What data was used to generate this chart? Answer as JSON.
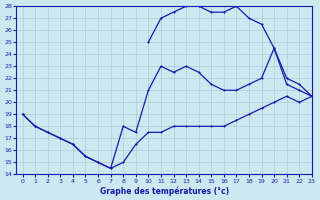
{
  "xlabel": "Graphe des températures (°c)",
  "bg_color": "#cce8f0",
  "line_color": "#1a1aaa",
  "grid_color": "#aaccd8",
  "ylim": [
    14,
    28
  ],
  "xlim": [
    -0.5,
    23
  ],
  "yticks": [
    14,
    15,
    16,
    17,
    18,
    19,
    20,
    21,
    22,
    23,
    24,
    25,
    26,
    27,
    28
  ],
  "xticks": [
    0,
    1,
    2,
    3,
    4,
    5,
    6,
    7,
    8,
    9,
    10,
    11,
    12,
    13,
    14,
    15,
    16,
    17,
    18,
    19,
    20,
    21,
    22,
    23
  ],
  "line_bottom_x": [
    0,
    1,
    2,
    3,
    4,
    5,
    6,
    7,
    8,
    9,
    10,
    11,
    12,
    13,
    14,
    15,
    16,
    17,
    18,
    19,
    20,
    21,
    22,
    23
  ],
  "line_bottom_y": [
    19,
    18,
    17.5,
    17,
    16.5,
    15.5,
    15,
    14.5,
    15,
    16.5,
    17.5,
    17.5,
    18,
    18,
    18,
    18,
    18,
    18.5,
    19,
    19.5,
    20,
    20.5,
    20,
    20.5
  ],
  "line_mid_x": [
    0,
    1,
    2,
    3,
    4,
    5,
    6,
    7,
    8,
    9,
    10,
    11,
    12,
    13,
    14,
    15,
    16,
    17,
    18,
    19,
    20,
    21,
    22,
    23
  ],
  "line_mid_y": [
    19,
    18,
    17.5,
    17,
    16.5,
    15.5,
    15,
    14.5,
    18,
    17.5,
    21,
    23,
    22.5,
    23,
    22.5,
    21.5,
    21,
    21,
    21.5,
    22,
    24.5,
    22,
    21.5,
    20.5
  ],
  "line_top_x": [
    10,
    11,
    12,
    13,
    14,
    15,
    16,
    17,
    18,
    19,
    20,
    21,
    22,
    23
  ],
  "line_top_y": [
    25,
    27,
    27.5,
    28,
    28,
    27.5,
    27.5,
    28,
    27,
    26.5,
    24.5,
    21.5,
    21,
    20.5
  ]
}
